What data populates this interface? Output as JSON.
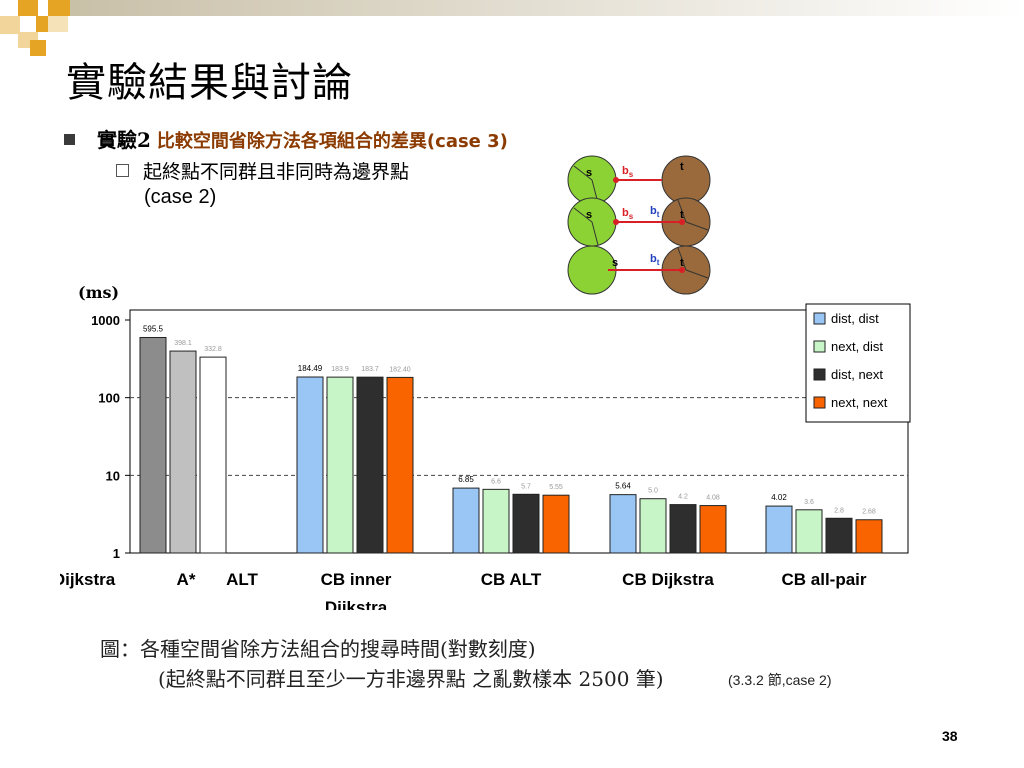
{
  "slide": {
    "title": "實驗結果與討論",
    "bullet1_lead": "實驗2",
    "bullet1_desc": "比較空間省除方法各項組合的差異(case 3)",
    "bullet2_line1": "起終點不同群且非同時為邊界點",
    "bullet2_line2": "(case 2)",
    "page_number": "38"
  },
  "diagram": {
    "rows": [
      {
        "left": "s",
        "edge_b": "b",
        "edge_b_sub": "s",
        "right": "t"
      },
      {
        "left": "s",
        "edge_b": "b",
        "edge_b_sub": "s",
        "edge_c": "b",
        "edge_c_sub": "t",
        "right": "t"
      },
      {
        "left": "s",
        "edge_c": "b",
        "edge_c_sub": "t",
        "right": "t"
      }
    ],
    "colors": {
      "green": "#8cd234",
      "brown": "#9a6a3c",
      "edge": "#d81f26",
      "label_b": "#d81f26",
      "label_bt": "#1f3fbf"
    }
  },
  "caption": {
    "line1": "圖：各種空間省除方法組合的搜尋時間(對數刻度)",
    "line2": "(起終點不同群且至少一方非邊界點 之亂數樣本 2500 筆)",
    "ref": "(3.3.2 節,case 2)"
  },
  "chart_data": {
    "type": "bar",
    "yscale": "log",
    "ylim": [
      1,
      1000
    ],
    "ylabel": "(ms)",
    "yticks": [
      "1000",
      "100",
      "10",
      "1"
    ],
    "grid": "dashed horizontal at 10 and 100",
    "legend_position": "top-right",
    "groups": [
      {
        "label_lines": [
          "Dijkstra",
          "A*",
          "ALT"
        ],
        "bars": [
          {
            "value": 595.5,
            "label": "595.5",
            "color": "#8c8c8c"
          },
          {
            "value": 398.1,
            "label": "398.1",
            "color": "#c0c0c0"
          },
          {
            "value": 332.8,
            "label": "332.8",
            "color": "#ffffff"
          }
        ]
      },
      {
        "label_lines": [
          "CB  inner",
          "Dijkstra"
        ],
        "bars": [
          {
            "value": 184.49,
            "label": "184.49",
            "color": "#99c6f5"
          },
          {
            "value": 183.9,
            "label": "183.9",
            "color": "#c8f5c8"
          },
          {
            "value": 183.7,
            "label": "183.7",
            "color": "#2e2e2e"
          },
          {
            "value": 182.4,
            "label": "182.40",
            "color": "#fa6400"
          }
        ]
      },
      {
        "label_lines": [
          "CB ALT"
        ],
        "bars": [
          {
            "value": 6.85,
            "label": "6.85",
            "color": "#99c6f5"
          },
          {
            "value": 6.6,
            "label": "6.6",
            "color": "#c8f5c8"
          },
          {
            "value": 5.7,
            "label": "5.7",
            "color": "#2e2e2e"
          },
          {
            "value": 5.55,
            "label": "5.55",
            "color": "#fa6400"
          }
        ]
      },
      {
        "label_lines": [
          "CB Dijkstra"
        ],
        "bars": [
          {
            "value": 5.64,
            "label": "5.64",
            "color": "#99c6f5"
          },
          {
            "value": 5.0,
            "label": "5.0",
            "color": "#c8f5c8"
          },
          {
            "value": 4.2,
            "label": "4.2",
            "color": "#2e2e2e"
          },
          {
            "value": 4.08,
            "label": "4.08",
            "color": "#fa6400"
          }
        ]
      },
      {
        "label_lines": [
          "CB all-pair"
        ],
        "bars": [
          {
            "value": 4.02,
            "label": "4.02",
            "color": "#99c6f5"
          },
          {
            "value": 3.6,
            "label": "3.6",
            "color": "#c8f5c8"
          },
          {
            "value": 2.8,
            "label": "2.8",
            "color": "#2e2e2e"
          },
          {
            "value": 2.68,
            "label": "2.68",
            "color": "#fa6400"
          }
        ]
      }
    ],
    "series": [
      {
        "name": "dist, dist",
        "color": "#99c6f5"
      },
      {
        "name": "next, dist",
        "color": "#c8f5c8"
      },
      {
        "name": "dist, next",
        "color": "#2e2e2e"
      },
      {
        "name": "next, next",
        "color": "#fa6400"
      }
    ]
  }
}
